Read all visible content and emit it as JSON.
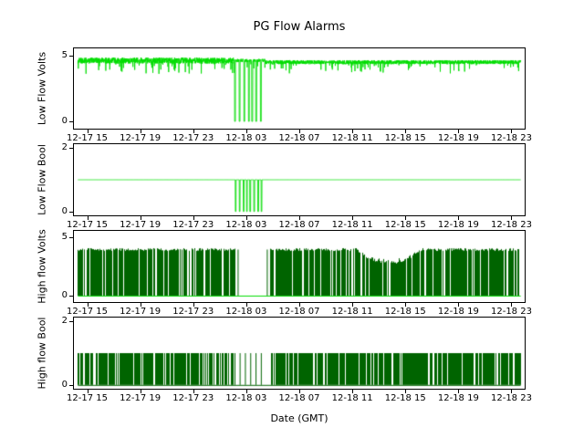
{
  "colors": {
    "light_green": "#00dd00",
    "dark_green": "#006400",
    "axis": "#000000",
    "background": "#ffffff"
  },
  "chart_data": {
    "type": "line",
    "title": "PG Flow Alarms",
    "xlabel": "Date (GMT)",
    "x_unit": "hours since 12-17 14:00 GMT",
    "xlim": [
      0,
      34
    ],
    "x_ticks": [
      1,
      5,
      9,
      13,
      17,
      21,
      25,
      29,
      33
    ],
    "x_tick_labels": [
      "12-17 15",
      "12-17 19",
      "12-17 23",
      "12-18 03",
      "12-18 07",
      "12-18 11",
      "12-18 15",
      "12-18 19",
      "12-18 23"
    ],
    "grid": false,
    "legend": "none",
    "subplots": [
      {
        "name": "low-flow-volts",
        "ylabel": "Low Flow Volts",
        "color": "light_green",
        "ylim": [
          -0.55,
          5.55
        ],
        "yticks": [
          0,
          5
        ],
        "signal": {
          "kind": "noisy-line",
          "segments": [
            {
              "x0": 0.3,
              "x1": 12.15,
              "base": 4.85,
              "noise": 0.45,
              "spike_p": 0.06,
              "spike_max": 1.0
            },
            {
              "x0": 12.15,
              "x1": 14.4,
              "base": 4.75,
              "noise": 0.25,
              "spike_p": 0.02,
              "spike_max": 0.5
            },
            {
              "x0": 14.4,
              "x1": 33.7,
              "base": 4.65,
              "noise": 0.3,
              "spike_p": 0.05,
              "spike_max": 0.8
            }
          ],
          "dropouts": [
            12.15,
            12.5,
            12.85,
            13.2,
            13.45,
            13.75,
            14.1
          ],
          "dropout_width": 0.07,
          "dropout_value": 0
        }
      },
      {
        "name": "low-flow-bool",
        "ylabel": "Low Flow Bool",
        "color": "light_green",
        "ylim": [
          -0.12,
          2.12
        ],
        "yticks": [
          0,
          2
        ],
        "signal": {
          "kind": "bool-line",
          "high": 1,
          "range": [
            0.3,
            33.7
          ],
          "dropouts": [
            12.2,
            12.5,
            12.8,
            13.05,
            13.3,
            13.6,
            13.9,
            14.15
          ],
          "dropout_width": 0.06,
          "dropout_value": 0
        }
      },
      {
        "name": "high-flow-volts",
        "ylabel": "High flow Volts",
        "color": "dark_green",
        "ylim": [
          -0.55,
          5.55
        ],
        "yticks": [
          0,
          5
        ],
        "signal": {
          "kind": "dense-toggle",
          "high": 3.95,
          "high_noise": 0.12,
          "col_p": 0.82,
          "on_regions": [
            [
              0.3,
              12.15
            ],
            [
              14.8,
              33.7
            ]
          ],
          "dip": {
            "x0": 21.3,
            "x1": 26.2,
            "min": 2.7
          },
          "gap_spikes": [
            12.35,
            14.55
          ],
          "baseline": {
            "value": 0,
            "color": "light_green"
          }
        }
      },
      {
        "name": "high-flow-bool",
        "ylabel": "High flow Bool",
        "color": "dark_green",
        "ylim": [
          -0.12,
          2.12
        ],
        "yticks": [
          0,
          2
        ],
        "signal": {
          "kind": "dense-toggle",
          "high": 1.0,
          "high_noise": 0,
          "col_p": 0.8,
          "on_regions": [
            [
              0.3,
              12.15
            ],
            [
              14.8,
              33.7
            ]
          ],
          "gap_spikes": [
            12.5,
            12.9,
            13.3,
            13.7,
            14.1
          ],
          "baseline": {
            "value": 0,
            "color": "dark_green"
          }
        }
      }
    ]
  }
}
